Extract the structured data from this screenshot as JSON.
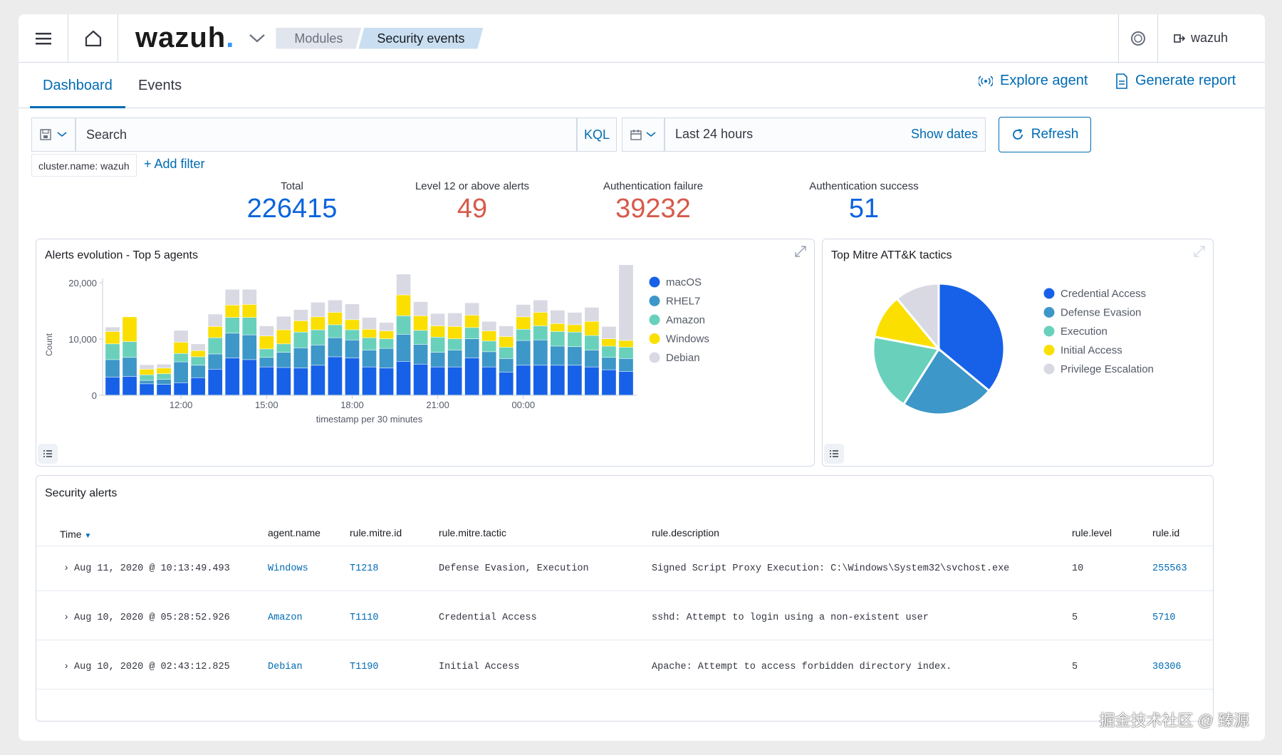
{
  "topbar": {
    "logo": "wazuh",
    "logo_dot": ".",
    "breadcrumbs": [
      "Modules",
      "Security events"
    ],
    "user": "wazuh"
  },
  "tabs": [
    "Dashboard",
    "Events"
  ],
  "actions": {
    "explore_agent": "Explore agent",
    "generate_report": "Generate report"
  },
  "search": {
    "placeholder": "Search",
    "kql": "KQL",
    "time_range": "Last 24 hours",
    "show_dates": "Show dates",
    "refresh": "Refresh"
  },
  "filters": {
    "pill": "cluster.name: wazuh",
    "add_filter": "+ Add filter"
  },
  "kpis": [
    {
      "label": "Total",
      "value": "226415",
      "color": "#0b64dd"
    },
    {
      "label": "Level 12 or above alerts",
      "value": "49",
      "color": "#d65a4b"
    },
    {
      "label": "Authentication failure",
      "value": "39232",
      "color": "#d65a4b"
    },
    {
      "label": "Authentication success",
      "value": "51",
      "color": "#0b64dd"
    }
  ],
  "alerts_panel": {
    "title": "Alerts evolution - Top 5 agents"
  },
  "mitre_panel": {
    "title": "Top Mitre ATT&K tactics"
  },
  "chart_data": [
    {
      "type": "bar",
      "stacked": true,
      "title": "Alerts evolution - Top 5 agents",
      "xlabel": "timestamp per 30 minutes",
      "ylabel": "Count",
      "ylim": [
        0,
        20000
      ],
      "yticks": [
        "0",
        "10,000",
        "20,000"
      ],
      "xticks": [
        {
          "label": "12:00",
          "index": 4
        },
        {
          "label": "15:00",
          "index": 9
        },
        {
          "label": "18:00",
          "index": 14
        },
        {
          "label": "21:00",
          "index": 19
        },
        {
          "label": "00:00",
          "index": 24
        }
      ],
      "grid": false,
      "legend": "right",
      "series": [
        {
          "name": "macOS",
          "color": "#1761e8",
          "values": [
            3200,
            3300,
            2000,
            1900,
            2200,
            3100,
            4600,
            6600,
            6300,
            5000,
            4900,
            4800,
            5300,
            6800,
            6600,
            5000,
            4800,
            6000,
            5500,
            5000,
            5000,
            6600,
            5000,
            4100,
            5300,
            5300,
            5300,
            5300,
            5000,
            4500,
            4200
          ]
        },
        {
          "name": "RHEL7",
          "color": "#3d97c8",
          "values": [
            3100,
            3400,
            600,
            900,
            3700,
            2200,
            2700,
            4400,
            4400,
            1700,
            2700,
            3600,
            3600,
            3400,
            3200,
            3000,
            3500,
            4800,
            3500,
            2600,
            3000,
            3400,
            2700,
            2400,
            4400,
            4500,
            3400,
            3300,
            3000,
            2200,
            2300
          ]
        },
        {
          "name": "Amazon",
          "color": "#69d1bb",
          "values": [
            2800,
            2800,
            1000,
            1000,
            1500,
            1500,
            2900,
            2800,
            3100,
            1500,
            1500,
            2800,
            2700,
            2300,
            1800,
            2200,
            1700,
            3300,
            2500,
            2700,
            2000,
            2000,
            1900,
            2000,
            2000,
            2500,
            2600,
            2600,
            2600,
            2000,
            2000
          ]
        },
        {
          "name": "Windows",
          "color": "#fadf00",
          "values": [
            2200,
            4400,
            1000,
            1000,
            2000,
            1100,
            2000,
            2200,
            2300,
            2300,
            2500,
            2000,
            2300,
            2200,
            1800,
            1500,
            1400,
            3700,
            2600,
            2000,
            2200,
            2200,
            1800,
            1900,
            2200,
            2400,
            1400,
            1300,
            2500,
            1300,
            1200
          ]
        },
        {
          "name": "Debian",
          "color": "#d9d9e4",
          "values": [
            800,
            0,
            800,
            700,
            2100,
            1200,
            2200,
            2800,
            2700,
            1800,
            2400,
            2000,
            2600,
            2200,
            2800,
            2100,
            1500,
            3700,
            2500,
            2200,
            2400,
            2200,
            1700,
            1900,
            2200,
            2200,
            2400,
            2200,
            2500,
            2200,
            14300
          ]
        }
      ]
    },
    {
      "type": "pie",
      "title": "Top Mitre ATT&K tactics",
      "legend": "right",
      "series": [
        {
          "labels": [
            "Credential Access",
            "Defense Evasion",
            "Execution",
            "Initial Access",
            "Privilege Escalation"
          ],
          "values": [
            36,
            23,
            19,
            11,
            11
          ],
          "colors": [
            "#1761e8",
            "#3d97c8",
            "#69d1bb",
            "#fadf00",
            "#d9d9e4"
          ]
        }
      ]
    }
  ],
  "table": {
    "title": "Security alerts",
    "headers": [
      "Time",
      "agent.name",
      "rule.mitre.id",
      "rule.mitre.tactic",
      "rule.description",
      "rule.level",
      "rule.id"
    ],
    "rows": [
      [
        "Aug 11, 2020 @ 10:13:49.493",
        "Windows",
        "T1218",
        "Defense Evasion, Execution",
        "Signed Script Proxy Execution: C:\\Windows\\System32\\svchost.exe",
        "10",
        "255563"
      ],
      [
        "Aug 10, 2020 @ 05:28:52.926",
        "Amazon",
        "T1110",
        "Credential Access",
        "sshd: Attempt to login using a non-existent user",
        "5",
        "5710"
      ],
      [
        "Aug 10, 2020 @ 02:43:12.825",
        "Debian",
        "T1190",
        "Initial Access",
        "Apache: Attempt to access forbidden directory index.",
        "5",
        "30306"
      ]
    ]
  },
  "watermark": "掘金技术社区 @ 臻源"
}
